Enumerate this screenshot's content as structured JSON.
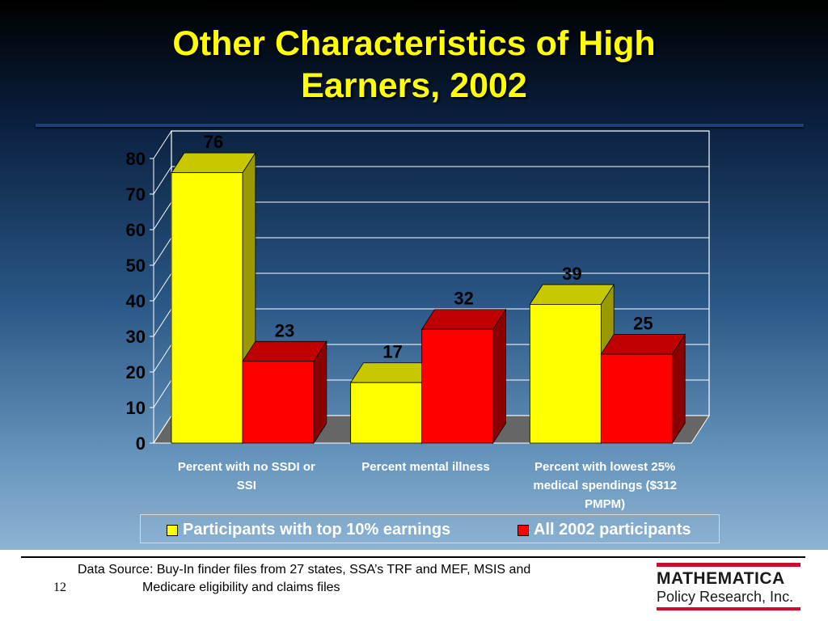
{
  "slide": {
    "title_line1": "Other Characteristics of High",
    "title_line2": "Earners, 2002",
    "page_number": "12",
    "source_line1": "Data Source:  Buy-In finder files from 27 states, SSA’s TRF and MEF, MSIS and",
    "source_line2": "Medicare eligibility and claims files",
    "logo_name": "MATHEMATICA",
    "logo_sub": "Policy Research, Inc.",
    "colors": {
      "title": "#ffff00",
      "brand_red": "#c8102e"
    }
  },
  "chart_data": {
    "type": "bar",
    "three_d": true,
    "categories": [
      [
        "Percent with no SSDI or",
        "SSI"
      ],
      [
        "Percent mental illness"
      ],
      [
        "Percent with lowest 25%",
        "medical spendings ($312",
        "PMPM)"
      ]
    ],
    "series": [
      {
        "name": "Participants with top 10% earnings",
        "values": [
          76,
          17,
          39
        ],
        "color": "#ffff00",
        "side_color": "#9a9a00",
        "top_color": "#c8c800"
      },
      {
        "name": "All 2002 participants",
        "values": [
          23,
          32,
          25
        ],
        "color": "#ff0000",
        "side_color": "#8b0000",
        "top_color": "#c00000"
      }
    ],
    "ylim": [
      0,
      80
    ],
    "yticks": [
      0,
      10,
      20,
      30,
      40,
      50,
      60,
      70,
      80
    ],
    "grid": true,
    "data_labels": true,
    "legend_position": "bottom"
  }
}
